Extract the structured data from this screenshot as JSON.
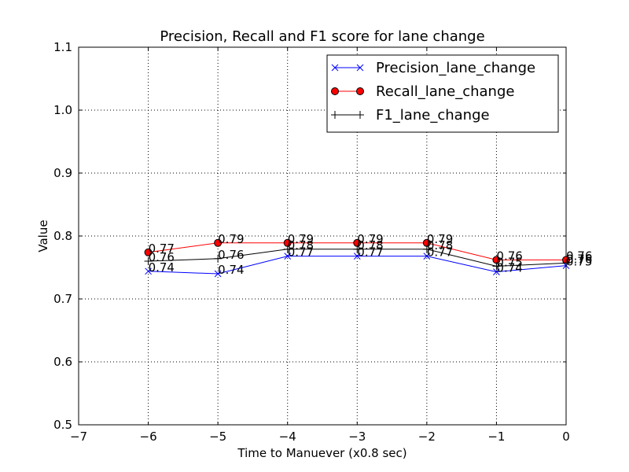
{
  "chart_data": {
    "type": "line",
    "title": "Precision, Recall and F1 score for lane change",
    "xlabel": "Time to Manuever (x0.8 sec)",
    "ylabel": "Value",
    "xlim": [
      -7,
      0
    ],
    "ylim": [
      0.5,
      1.1
    ],
    "xticks": [
      "−7",
      "−6",
      "−5",
      "−4",
      "−3",
      "−2",
      "−1",
      "0"
    ],
    "yticks": [
      "0.5",
      "0.6",
      "0.7",
      "0.8",
      "0.9",
      "1.0",
      "1.1"
    ],
    "grid": true,
    "legend_position": "top-right",
    "x": [
      -6,
      -5,
      -4,
      -3,
      -2,
      -1,
      0
    ],
    "series": [
      {
        "name": "Precision_lane_change",
        "color": "#0000ff",
        "marker": "x",
        "values": [
          0.744,
          0.74,
          0.768,
          0.768,
          0.768,
          0.743,
          0.753
        ],
        "labels": [
          "0.74",
          "0.74",
          "0.77",
          "0.77",
          "0.77",
          "0.74",
          "0.75"
        ]
      },
      {
        "name": "Recall_lane_change",
        "color": "#ff0000",
        "marker": "o",
        "values": [
          0.774,
          0.789,
          0.789,
          0.789,
          0.789,
          0.762,
          0.762
        ],
        "labels": [
          "0.77",
          "0.79",
          "0.79",
          "0.79",
          "0.79",
          "0.76",
          "0.76"
        ]
      },
      {
        "name": "F1_lane_change",
        "color": "#000000",
        "marker": "+",
        "values": [
          0.76,
          0.764,
          0.779,
          0.779,
          0.779,
          0.752,
          0.757
        ],
        "labels": [
          "0.76",
          "0.76",
          "0.78",
          "0.78",
          "0.78",
          "0.75",
          "0.76"
        ]
      }
    ]
  }
}
